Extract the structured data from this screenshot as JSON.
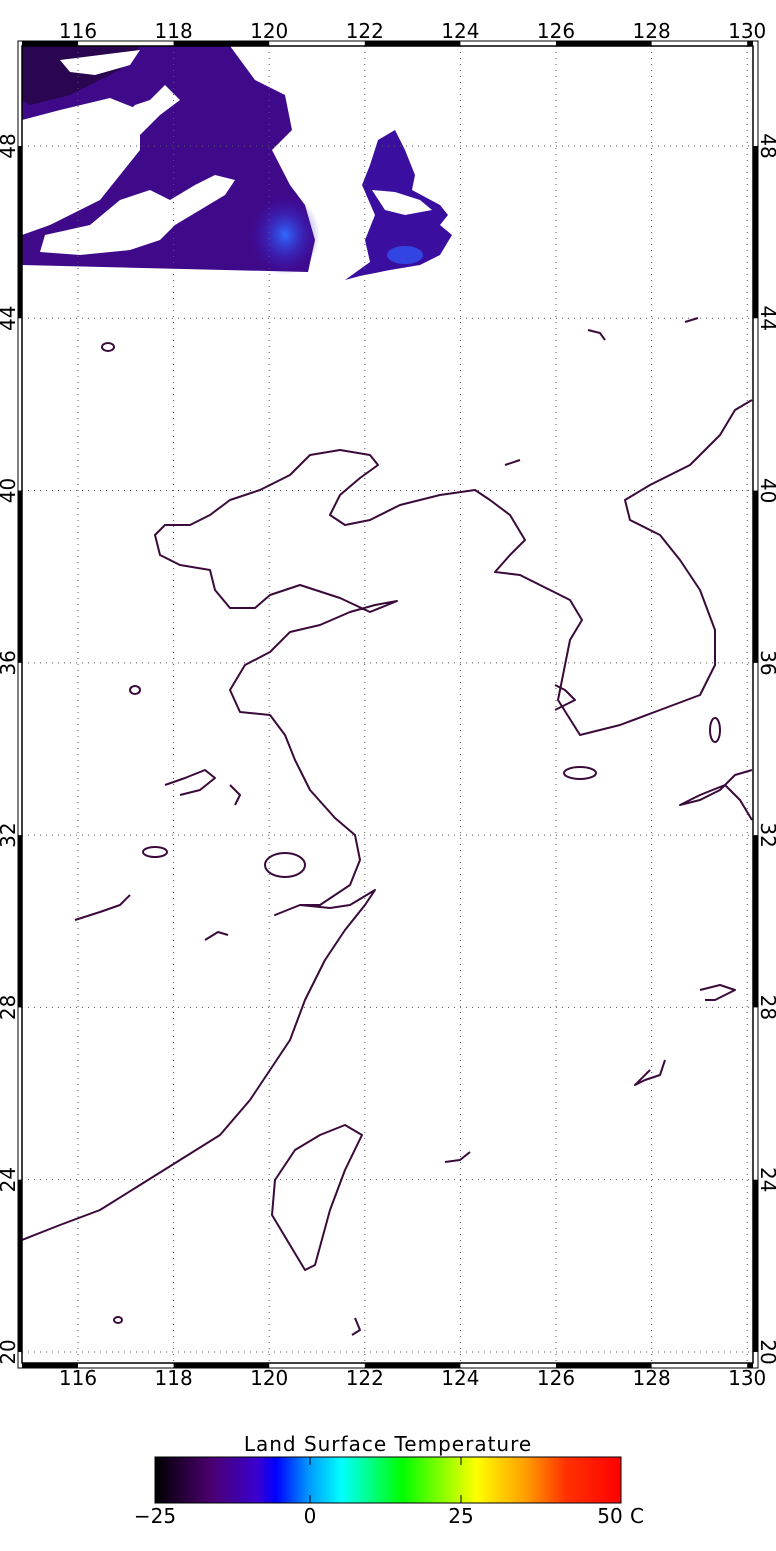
{
  "map": {
    "lon_ticks": [
      "116",
      "118",
      "120",
      "122",
      "124",
      "126",
      "128",
      "130"
    ],
    "lat_ticks": [
      "48",
      "44",
      "40",
      "36",
      "32",
      "28",
      "24",
      "20"
    ],
    "coastline_color": "#3a0a3a",
    "grid": "dotted"
  },
  "colorbar": {
    "title": "Land Surface Temperature",
    "tick_labels": [
      "−25",
      "0",
      "25",
      "50"
    ],
    "unit": "C",
    "range": [
      -25,
      50
    ],
    "colors": [
      "#000000",
      "#5a0080",
      "#0000ff",
      "#0099ff",
      "#00ffff",
      "#00ff00",
      "#ffff00",
      "#ff9900",
      "#ff0000"
    ]
  }
}
